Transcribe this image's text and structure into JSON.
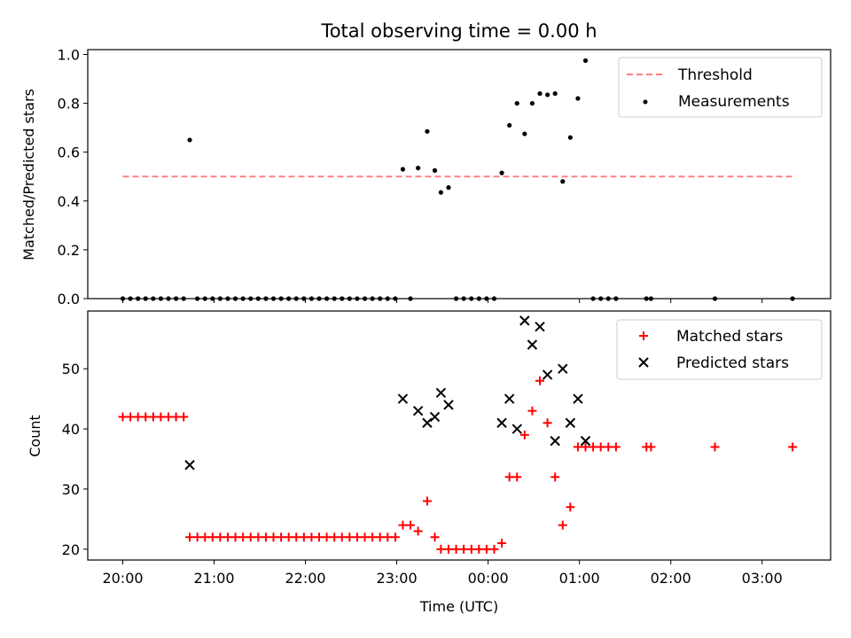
{
  "figure": {
    "title": "Total observing time = 0.00 h"
  },
  "chart_data": [
    {
      "type": "scatter",
      "panel": "top",
      "ylabel": "Matched/Predicted stars",
      "xlabel": "",
      "xlim": [
        "19:37",
        "03:45"
      ],
      "ylim": [
        0,
        1.02
      ],
      "yticks": [
        0.0,
        0.2,
        0.4,
        0.6,
        0.8,
        1.0
      ],
      "ytick_labels": [
        "0.0",
        "0.2",
        "0.4",
        "0.6",
        "0.8",
        "1.0"
      ],
      "xticks": [
        "20:00",
        "21:00",
        "22:00",
        "23:00",
        "00:00",
        "01:00",
        "02:00",
        "03:00"
      ],
      "grid": false,
      "legend_position": "upper right",
      "series": [
        {
          "name": "Threshold",
          "kind": "line",
          "style": "dashed",
          "color": "#ff8080",
          "x": [
            "20:00",
            "03:20"
          ],
          "y": [
            0.5,
            0.5
          ]
        },
        {
          "name": "Measurements",
          "kind": "scatter",
          "marker": "dot",
          "color": "#000000",
          "points": [
            [
              "20:00",
              0.0
            ],
            [
              "20:05",
              0.0
            ],
            [
              "20:10",
              0.0
            ],
            [
              "20:15",
              0.0
            ],
            [
              "20:20",
              0.0
            ],
            [
              "20:25",
              0.0
            ],
            [
              "20:30",
              0.0
            ],
            [
              "20:35",
              0.0
            ],
            [
              "20:40",
              0.0
            ],
            [
              "20:44",
              0.65
            ],
            [
              "20:49",
              0.0
            ],
            [
              "20:54",
              0.0
            ],
            [
              "20:59",
              0.0
            ],
            [
              "21:04",
              0.0
            ],
            [
              "21:09",
              0.0
            ],
            [
              "21:14",
              0.0
            ],
            [
              "21:19",
              0.0
            ],
            [
              "21:24",
              0.0
            ],
            [
              "21:29",
              0.0
            ],
            [
              "21:34",
              0.0
            ],
            [
              "21:39",
              0.0
            ],
            [
              "21:44",
              0.0
            ],
            [
              "21:49",
              0.0
            ],
            [
              "21:54",
              0.0
            ],
            [
              "21:59",
              0.0
            ],
            [
              "22:04",
              0.0
            ],
            [
              "22:09",
              0.0
            ],
            [
              "22:14",
              0.0
            ],
            [
              "22:19",
              0.0
            ],
            [
              "22:24",
              0.0
            ],
            [
              "22:29",
              0.0
            ],
            [
              "22:34",
              0.0
            ],
            [
              "22:39",
              0.0
            ],
            [
              "22:44",
              0.0
            ],
            [
              "22:49",
              0.0
            ],
            [
              "22:54",
              0.0
            ],
            [
              "22:59",
              0.0
            ],
            [
              "23:04",
              0.53
            ],
            [
              "23:09",
              0.0
            ],
            [
              "23:14",
              0.535
            ],
            [
              "23:20",
              0.685
            ],
            [
              "23:25",
              0.525
            ],
            [
              "23:29",
              0.435
            ],
            [
              "23:34",
              0.455
            ],
            [
              "23:39",
              0.0
            ],
            [
              "23:44",
              0.0
            ],
            [
              "23:49",
              0.0
            ],
            [
              "23:54",
              0.0
            ],
            [
              "23:59",
              0.0
            ],
            [
              "00:04",
              0.0
            ],
            [
              "00:09",
              0.515
            ],
            [
              "00:14",
              0.71
            ],
            [
              "00:19",
              0.8
            ],
            [
              "00:24",
              0.675
            ],
            [
              "00:29",
              0.8
            ],
            [
              "00:34",
              0.84
            ],
            [
              "00:39",
              0.835
            ],
            [
              "00:44",
              0.84
            ],
            [
              "00:49",
              0.48
            ],
            [
              "00:54",
              0.66
            ],
            [
              "00:59",
              0.82
            ],
            [
              "01:04",
              0.975
            ],
            [
              "01:09",
              0.0
            ],
            [
              "01:14",
              0.0
            ],
            [
              "01:19",
              0.0
            ],
            [
              "01:24",
              0.0
            ],
            [
              "01:44",
              0.0
            ],
            [
              "01:47",
              0.0
            ],
            [
              "02:29",
              0.0
            ],
            [
              "03:20",
              0.0
            ]
          ]
        }
      ]
    },
    {
      "type": "scatter",
      "panel": "bottom",
      "ylabel": "Count",
      "xlabel": "Time (UTC)",
      "xlim": [
        "19:37",
        "03:45"
      ],
      "ylim": [
        18.2,
        59.6
      ],
      "yticks": [
        20,
        30,
        40,
        50
      ],
      "ytick_labels": [
        "20",
        "30",
        "40",
        "50"
      ],
      "xticks": [
        "20:00",
        "21:00",
        "22:00",
        "23:00",
        "00:00",
        "01:00",
        "02:00",
        "03:00"
      ],
      "xtick_labels": [
        "20:00",
        "21:00",
        "22:00",
        "23:00",
        "00:00",
        "01:00",
        "02:00",
        "03:00"
      ],
      "grid": false,
      "legend_position": "upper right",
      "series": [
        {
          "name": "Matched stars",
          "kind": "scatter",
          "marker": "plus",
          "color": "#ff0000",
          "points": [
            [
              "20:00",
              42
            ],
            [
              "20:05",
              42
            ],
            [
              "20:10",
              42
            ],
            [
              "20:15",
              42
            ],
            [
              "20:20",
              42
            ],
            [
              "20:25",
              42
            ],
            [
              "20:30",
              42
            ],
            [
              "20:35",
              42
            ],
            [
              "20:40",
              42
            ],
            [
              "20:44",
              22
            ],
            [
              "20:49",
              22
            ],
            [
              "20:54",
              22
            ],
            [
              "20:59",
              22
            ],
            [
              "21:04",
              22
            ],
            [
              "21:09",
              22
            ],
            [
              "21:14",
              22
            ],
            [
              "21:19",
              22
            ],
            [
              "21:24",
              22
            ],
            [
              "21:29",
              22
            ],
            [
              "21:34",
              22
            ],
            [
              "21:39",
              22
            ],
            [
              "21:44",
              22
            ],
            [
              "21:49",
              22
            ],
            [
              "21:54",
              22
            ],
            [
              "21:59",
              22
            ],
            [
              "22:04",
              22
            ],
            [
              "22:09",
              22
            ],
            [
              "22:14",
              22
            ],
            [
              "22:19",
              22
            ],
            [
              "22:24",
              22
            ],
            [
              "22:29",
              22
            ],
            [
              "22:34",
              22
            ],
            [
              "22:39",
              22
            ],
            [
              "22:44",
              22
            ],
            [
              "22:49",
              22
            ],
            [
              "22:54",
              22
            ],
            [
              "22:59",
              22
            ],
            [
              "23:04",
              24
            ],
            [
              "23:09",
              24
            ],
            [
              "23:14",
              23
            ],
            [
              "23:20",
              28
            ],
            [
              "23:25",
              22
            ],
            [
              "23:29",
              20
            ],
            [
              "23:34",
              20
            ],
            [
              "23:39",
              20
            ],
            [
              "23:44",
              20
            ],
            [
              "23:49",
              20
            ],
            [
              "23:54",
              20
            ],
            [
              "23:59",
              20
            ],
            [
              "00:04",
              20
            ],
            [
              "00:09",
              21
            ],
            [
              "00:14",
              32
            ],
            [
              "00:19",
              32
            ],
            [
              "00:24",
              39
            ],
            [
              "00:29",
              43
            ],
            [
              "00:34",
              48
            ],
            [
              "00:39",
              41
            ],
            [
              "00:44",
              32
            ],
            [
              "00:49",
              24
            ],
            [
              "00:54",
              27
            ],
            [
              "00:59",
              37
            ],
            [
              "01:04",
              37
            ],
            [
              "01:09",
              37
            ],
            [
              "01:14",
              37
            ],
            [
              "01:19",
              37
            ],
            [
              "01:24",
              37
            ],
            [
              "01:44",
              37
            ],
            [
              "01:47",
              37
            ],
            [
              "02:29",
              37
            ],
            [
              "03:20",
              37
            ]
          ]
        },
        {
          "name": "Predicted stars",
          "kind": "scatter",
          "marker": "x",
          "color": "#000000",
          "points": [
            [
              "20:44",
              34
            ],
            [
              "23:04",
              45
            ],
            [
              "23:14",
              43
            ],
            [
              "23:20",
              41
            ],
            [
              "23:25",
              42
            ],
            [
              "23:29",
              46
            ],
            [
              "23:34",
              44
            ],
            [
              "00:09",
              41
            ],
            [
              "00:14",
              45
            ],
            [
              "00:19",
              40
            ],
            [
              "00:24",
              58
            ],
            [
              "00:29",
              54
            ],
            [
              "00:34",
              57
            ],
            [
              "00:39",
              49
            ],
            [
              "00:44",
              38
            ],
            [
              "00:49",
              50
            ],
            [
              "00:54",
              41
            ],
            [
              "00:59",
              45
            ],
            [
              "01:04",
              38
            ]
          ]
        }
      ]
    }
  ]
}
